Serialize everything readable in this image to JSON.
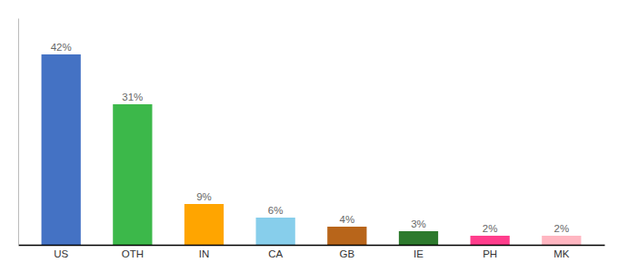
{
  "chart_data": {
    "type": "bar",
    "categories": [
      "US",
      "OTH",
      "IN",
      "CA",
      "GB",
      "IE",
      "PH",
      "MK"
    ],
    "values": [
      42,
      31,
      9,
      6,
      4,
      3,
      2,
      2
    ],
    "value_labels": [
      "42%",
      "31%",
      "9%",
      "6%",
      "4%",
      "3%",
      "2%",
      "2%"
    ],
    "colors": [
      "#4472C4",
      "#3CB84A",
      "#FFA500",
      "#87CEEB",
      "#B8651A",
      "#2D7A2D",
      "#FF3D8C",
      "#FFB6C1"
    ],
    "ylim": [
      0,
      50
    ],
    "data_labels": true,
    "tick_labels": "x",
    "grid": false
  }
}
